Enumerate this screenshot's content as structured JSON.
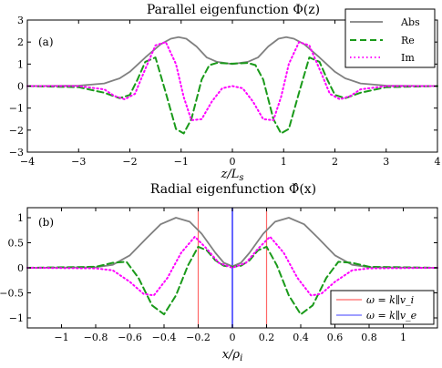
{
  "chart_data": [
    {
      "type": "line",
      "title": "Parallel eigenfunction Φ(z)",
      "panel_label": "(a)",
      "xlabel": "z/L_s",
      "ylabel": "",
      "xlim": [
        -4,
        4
      ],
      "ylim": [
        -3,
        3
      ],
      "xticks": [
        -4,
        -3,
        -2,
        -1,
        0,
        1,
        2,
        3,
        4
      ],
      "yticks": [
        -3,
        -2,
        -1,
        0,
        1,
        2,
        3
      ],
      "legend": {
        "position": "top-right",
        "entries": [
          "Abs",
          "Re",
          "Im"
        ]
      },
      "series": [
        {
          "name": "Abs",
          "color": "#808080",
          "dash": "solid",
          "x": [
            -4,
            -3,
            -2.5,
            -2.2,
            -2,
            -1.7,
            -1.4,
            -1.2,
            -1.05,
            -0.9,
            -0.7,
            -0.5,
            -0.3,
            0,
            0.3,
            0.5,
            0.7,
            0.9,
            1.05,
            1.2,
            1.4,
            1.7,
            2,
            2.2,
            2.5,
            3,
            4
          ],
          "y": [
            0,
            0.02,
            0.12,
            0.35,
            0.65,
            1.3,
            1.9,
            2.15,
            2.22,
            2.15,
            1.8,
            1.3,
            1.1,
            1.0,
            1.1,
            1.3,
            1.8,
            2.15,
            2.22,
            2.15,
            1.9,
            1.3,
            0.65,
            0.35,
            0.12,
            0.02,
            0
          ]
        },
        {
          "name": "Re",
          "color": "#1a9a1a",
          "dash": "dash",
          "x": [
            -4,
            -3,
            -2.5,
            -2.2,
            -2,
            -1.85,
            -1.7,
            -1.5,
            -1.3,
            -1.1,
            -0.95,
            -0.8,
            -0.6,
            -0.45,
            -0.3,
            0,
            0.3,
            0.45,
            0.6,
            0.8,
            0.95,
            1.1,
            1.3,
            1.5,
            1.7,
            1.85,
            2,
            2.2,
            2.5,
            3,
            4
          ],
          "y": [
            0,
            -0.05,
            -0.3,
            -0.55,
            -0.4,
            0.3,
            1.1,
            1.3,
            -0.3,
            -1.95,
            -2.15,
            -1.5,
            0.3,
            0.95,
            1.05,
            1.02,
            1.05,
            0.95,
            0.3,
            -1.5,
            -2.15,
            -1.95,
            -0.3,
            1.3,
            1.1,
            0.3,
            -0.4,
            -0.55,
            -0.3,
            -0.05,
            0
          ]
        },
        {
          "name": "Im",
          "color": "#ff00ff",
          "dash": "dot",
          "x": [
            -4,
            -3,
            -2.5,
            -2.3,
            -2.1,
            -1.9,
            -1.75,
            -1.5,
            -1.3,
            -1.1,
            -0.95,
            -0.8,
            -0.6,
            -0.4,
            -0.2,
            0,
            0.2,
            0.4,
            0.6,
            0.8,
            0.95,
            1.1,
            1.3,
            1.5,
            1.75,
            1.9,
            2.1,
            2.3,
            2.5,
            3,
            4
          ],
          "y": [
            0,
            0,
            -0.15,
            -0.45,
            -0.6,
            -0.35,
            0.5,
            1.85,
            2.0,
            1.0,
            -0.5,
            -1.55,
            -1.5,
            -0.7,
            -0.1,
            0,
            -0.1,
            -0.7,
            -1.5,
            -1.55,
            -0.5,
            1.0,
            2.0,
            1.85,
            0.5,
            -0.35,
            -0.6,
            -0.45,
            -0.15,
            0,
            0
          ]
        }
      ]
    },
    {
      "type": "line",
      "title": "Radial eigenfunction Φ̂(x)",
      "panel_label": "(b)",
      "xlabel": "x/ρ_i",
      "ylabel": "",
      "xlim": [
        -1.2,
        1.2
      ],
      "ylim": [
        -1.2,
        1.2
      ],
      "xticks": [
        -1,
        -0.8,
        -0.6,
        -0.4,
        -0.2,
        0,
        0.2,
        0.4,
        0.6,
        0.8,
        1
      ],
      "yticks": [
        -1,
        -0.5,
        0,
        0.5,
        1
      ],
      "legend": {
        "position": "bottom-right",
        "entries": [
          "ω = k∥v_i",
          "ω = k∥v_e"
        ]
      },
      "series": [
        {
          "name": "Abs",
          "color": "#808080",
          "dash": "solid",
          "x": [
            -1.2,
            -0.8,
            -0.7,
            -0.6,
            -0.5,
            -0.42,
            -0.33,
            -0.25,
            -0.18,
            -0.1,
            -0.05,
            0,
            0.05,
            0.1,
            0.18,
            0.25,
            0.33,
            0.42,
            0.5,
            0.6,
            0.7,
            0.8,
            1.2
          ],
          "y": [
            0,
            0.01,
            0.06,
            0.25,
            0.6,
            0.87,
            1.0,
            0.92,
            0.68,
            0.3,
            0.1,
            0.03,
            0.1,
            0.3,
            0.68,
            0.92,
            1.0,
            0.87,
            0.6,
            0.25,
            0.06,
            0.01,
            0
          ]
        },
        {
          "name": "Re",
          "color": "#1a9a1a",
          "dash": "dash",
          "x": [
            -1.2,
            -0.8,
            -0.7,
            -0.62,
            -0.55,
            -0.47,
            -0.4,
            -0.33,
            -0.26,
            -0.2,
            -0.15,
            -0.1,
            -0.05,
            0,
            0.05,
            0.1,
            0.15,
            0.2,
            0.26,
            0.33,
            0.4,
            0.47,
            0.55,
            0.62,
            0.7,
            0.8,
            1.2
          ],
          "y": [
            0,
            0.02,
            0.1,
            0.12,
            -0.2,
            -0.75,
            -0.93,
            -0.55,
            0.05,
            0.42,
            0.35,
            0.15,
            0.04,
            0.02,
            0.04,
            0.15,
            0.35,
            0.42,
            0.05,
            -0.55,
            -0.93,
            -0.75,
            -0.2,
            0.12,
            0.1,
            0.02,
            0
          ]
        },
        {
          "name": "Im",
          "color": "#ff00ff",
          "dash": "dot",
          "x": [
            -1.2,
            -0.8,
            -0.7,
            -0.6,
            -0.52,
            -0.46,
            -0.38,
            -0.3,
            -0.22,
            -0.15,
            -0.08,
            0,
            0.08,
            0.15,
            0.22,
            0.3,
            0.38,
            0.46,
            0.52,
            0.6,
            0.7,
            0.8,
            1.2
          ],
          "y": [
            0,
            -0.01,
            -0.05,
            -0.28,
            -0.52,
            -0.55,
            -0.2,
            0.3,
            0.62,
            0.38,
            0.1,
            0,
            0.1,
            0.38,
            0.62,
            0.3,
            -0.2,
            -0.55,
            -0.52,
            -0.28,
            -0.05,
            -0.01,
            0
          ]
        }
      ],
      "vlines": [
        {
          "name": "ω = k∥v_i",
          "color": "#ff6666",
          "x": [
            -0.2,
            0.2
          ]
        },
        {
          "name": "ω = k∥v_e",
          "color": "#6666ff",
          "x": [
            0
          ]
        }
      ]
    }
  ]
}
